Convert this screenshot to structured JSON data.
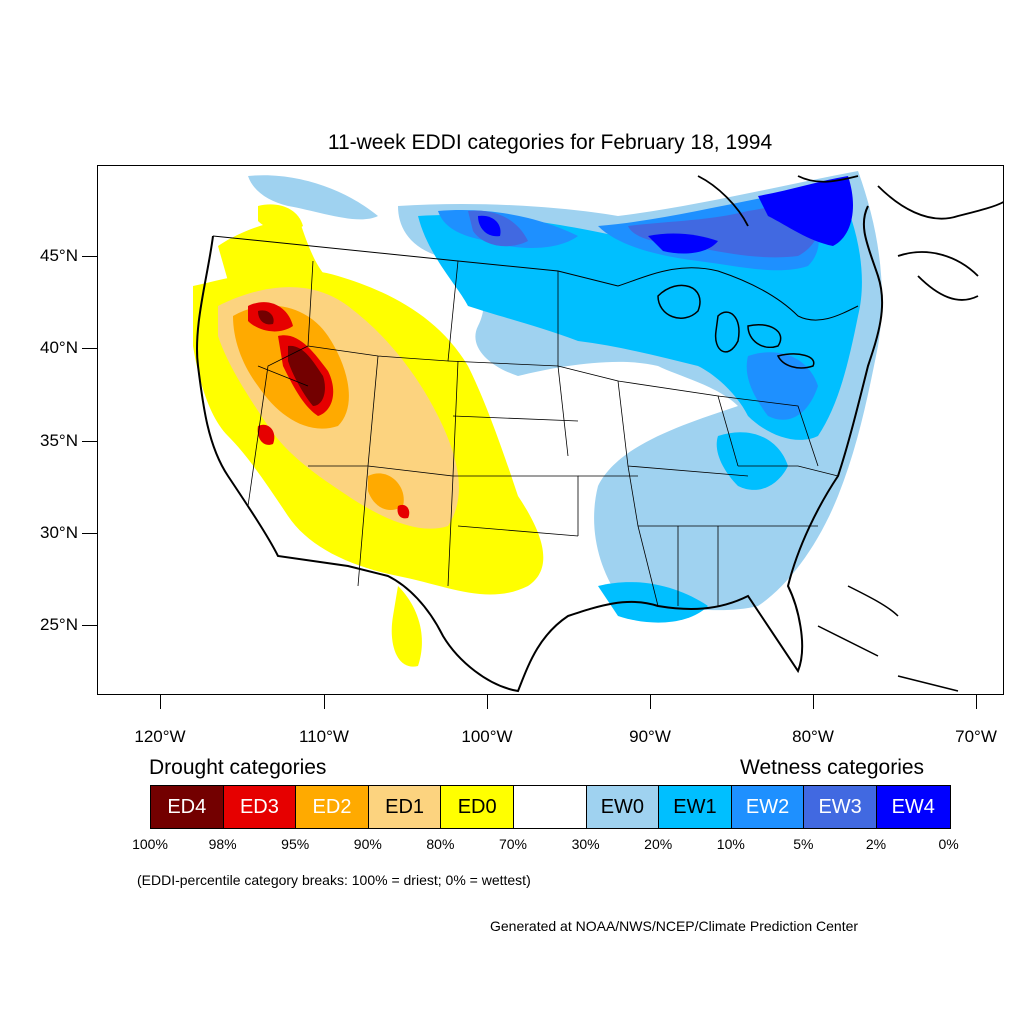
{
  "title": "11-week EDDI categories for February 18, 1994",
  "lat_labels": [
    "45°N",
    "40°N",
    "35°N",
    "30°N",
    "25°N"
  ],
  "lon_labels": [
    "120°W",
    "110°W",
    "100°W",
    "90°W",
    "80°W",
    "70°W"
  ],
  "legend": {
    "drought_heading": "Drought categories",
    "wetness_heading": "Wetness categories",
    "categories": [
      {
        "label": "ED4",
        "color": "#730000",
        "text_color": "#ffffff"
      },
      {
        "label": "ED3",
        "color": "#e60000",
        "text_color": "#ffffff"
      },
      {
        "label": "ED2",
        "color": "#ffaa00",
        "text_color": "#ffffff"
      },
      {
        "label": "ED1",
        "color": "#fcd37f",
        "text_color": "#000000"
      },
      {
        "label": "ED0",
        "color": "#ffff00",
        "text_color": "#000000"
      },
      {
        "label": "",
        "color": "#ffffff",
        "text_color": "#000000"
      },
      {
        "label": "EW0",
        "color": "#9fd2f0",
        "text_color": "#000000"
      },
      {
        "label": "EW1",
        "color": "#00bfff",
        "text_color": "#000000"
      },
      {
        "label": "EW2",
        "color": "#1e90ff",
        "text_color": "#ffffff"
      },
      {
        "label": "EW3",
        "color": "#4169e1",
        "text_color": "#ffffff"
      },
      {
        "label": "EW4",
        "color": "#0000ff",
        "text_color": "#ffffff"
      }
    ],
    "percentiles": [
      "100%",
      "98%",
      "95%",
      "90%",
      "80%",
      "70%",
      "30%",
      "20%",
      "10%",
      "5%",
      "2%",
      "0%"
    ]
  },
  "note": "(EDDI-percentile category breaks: 100% = driest; 0% = wettest)",
  "credit": "Generated at NOAA/NWS/NCEP/Climate Prediction Center"
}
